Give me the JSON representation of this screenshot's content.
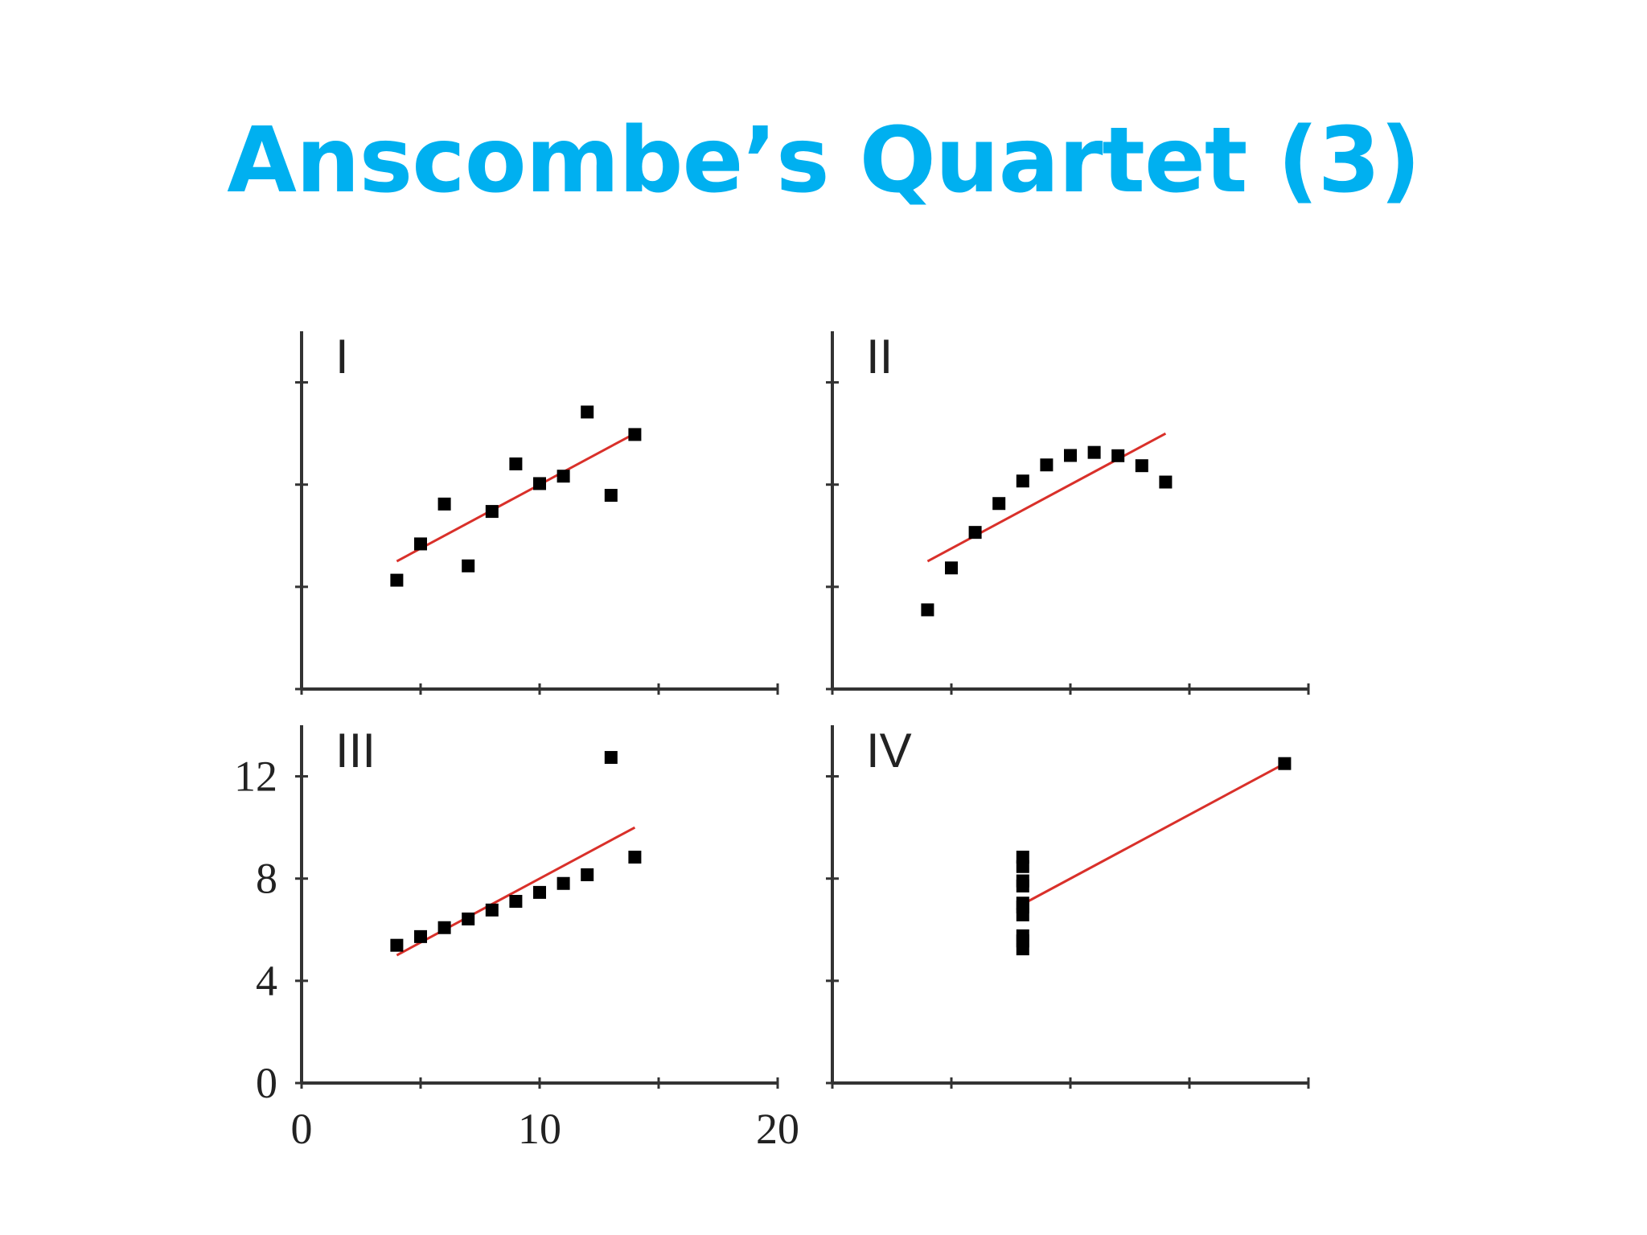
{
  "slide": {
    "title": "Anscombe’s Quartet (3)"
  },
  "colors": {
    "title": "#00b0f0",
    "fit_line": "#d9302a",
    "points": "#000000",
    "axes": "#333333"
  },
  "chart_data": [
    {
      "type": "scatter",
      "panel_label": "I",
      "xlim": [
        0,
        20
      ],
      "ylim": [
        0,
        14
      ],
      "x": [
        10,
        8,
        13,
        9,
        11,
        14,
        6,
        4,
        12,
        7,
        5
      ],
      "y": [
        8.04,
        6.95,
        7.58,
        8.81,
        8.33,
        9.96,
        7.24,
        4.26,
        10.84,
        4.82,
        5.68
      ],
      "fit_line": {
        "x": [
          4,
          14
        ],
        "y": [
          5.0,
          10.0
        ]
      }
    },
    {
      "type": "scatter",
      "panel_label": "II",
      "xlim": [
        0,
        20
      ],
      "ylim": [
        0,
        14
      ],
      "x": [
        10,
        8,
        13,
        9,
        11,
        14,
        6,
        4,
        12,
        7,
        5
      ],
      "y": [
        9.14,
        8.14,
        8.74,
        8.77,
        9.26,
        8.1,
        6.13,
        3.1,
        9.13,
        7.26,
        4.74
      ],
      "fit_line": {
        "x": [
          4,
          14
        ],
        "y": [
          5.0,
          10.0
        ]
      }
    },
    {
      "type": "scatter",
      "panel_label": "III",
      "xlim": [
        0,
        20
      ],
      "ylim": [
        0,
        14
      ],
      "x": [
        10,
        8,
        13,
        9,
        11,
        14,
        6,
        4,
        12,
        7,
        5
      ],
      "y": [
        7.46,
        6.77,
        12.74,
        7.11,
        7.81,
        8.84,
        6.08,
        5.39,
        8.15,
        6.42,
        5.73
      ],
      "fit_line": {
        "x": [
          4,
          14
        ],
        "y": [
          5.0,
          10.0
        ]
      },
      "x_ticks": [
        "0",
        "10",
        "20"
      ],
      "y_ticks": [
        "0",
        "4",
        "8",
        "12"
      ]
    },
    {
      "type": "scatter",
      "panel_label": "IV",
      "xlim": [
        0,
        20
      ],
      "ylim": [
        0,
        14
      ],
      "x": [
        8,
        8,
        8,
        8,
        8,
        8,
        8,
        19,
        8,
        8,
        8
      ],
      "y": [
        6.58,
        5.76,
        7.71,
        8.84,
        8.47,
        7.04,
        5.25,
        12.5,
        5.56,
        7.91,
        6.89
      ],
      "fit_line": {
        "x": [
          8,
          19
        ],
        "y": [
          7.0,
          12.5
        ]
      }
    }
  ]
}
